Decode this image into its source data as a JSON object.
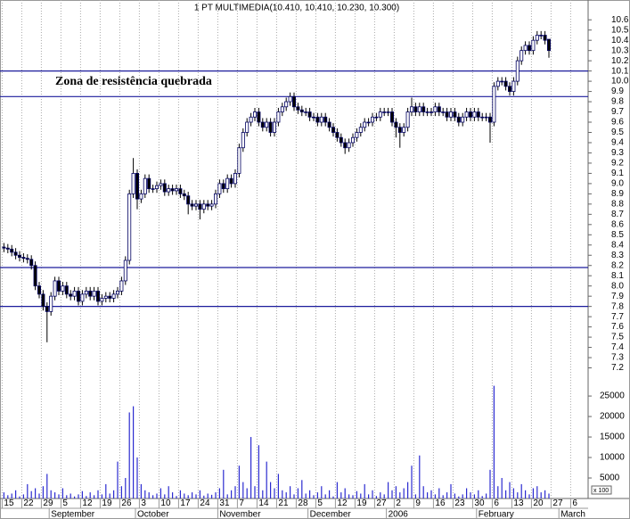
{
  "chart_data": {
    "type": "candlestick",
    "title": "1 PT MULTIMEDIA(10.410, 10.410, 10.230, 10.300)",
    "annotation": "Zona de resistência quebrada",
    "open": [
      8.38,
      8.37,
      8.36,
      8.33,
      8.3,
      8.28,
      8.27,
      8.26,
      8.2,
      8.0,
      7.92,
      7.8,
      7.75,
      7.9,
      8.05,
      7.95,
      8.0,
      7.92,
      7.9,
      7.95,
      7.85,
      7.92,
      7.95,
      7.9,
      7.95,
      7.85,
      7.88,
      7.9,
      7.88,
      7.92,
      7.95,
      8.05,
      8.25,
      8.9,
      9.1,
      8.85,
      8.9,
      9.05,
      8.95,
      8.95,
      8.98,
      9.0,
      8.92,
      8.95,
      8.93,
      8.95,
      8.9,
      8.88,
      8.8,
      8.78,
      8.8,
      8.75,
      8.8,
      8.78,
      8.8,
      8.9,
      9.0,
      8.95,
      9.05,
      9.0,
      9.1,
      9.35,
      9.5,
      9.6,
      9.65,
      9.7,
      9.6,
      9.55,
      9.6,
      9.5,
      9.6,
      9.7,
      9.75,
      9.8,
      9.85,
      9.75,
      9.72,
      9.7,
      9.7,
      9.65,
      9.65,
      9.6,
      9.65,
      9.6,
      9.55,
      9.5,
      9.45,
      9.4,
      9.35,
      9.4,
      9.45,
      9.5,
      9.55,
      9.6,
      9.6,
      9.65,
      9.65,
      9.7,
      9.7,
      9.7,
      9.6,
      9.55,
      9.5,
      9.55,
      9.7,
      9.75,
      9.7,
      9.75,
      9.7,
      9.7,
      9.7,
      9.75,
      9.7,
      9.7,
      9.65,
      9.7,
      9.65,
      9.6,
      9.65,
      9.7,
      9.65,
      9.7,
      9.65,
      9.65,
      9.65,
      9.6,
      9.95,
      10.0,
      10.0,
      9.95,
      9.9,
      10.0,
      10.2,
      10.3,
      10.35,
      10.3,
      10.4,
      10.45,
      10.45,
      10.41
    ],
    "high": [
      8.42,
      8.41,
      8.4,
      8.37,
      8.34,
      8.32,
      8.31,
      8.3,
      8.24,
      8.04,
      7.96,
      7.84,
      7.94,
      8.09,
      8.09,
      8.04,
      8.04,
      7.96,
      7.99,
      7.99,
      7.96,
      7.99,
      7.99,
      7.99,
      7.99,
      7.92,
      7.94,
      7.94,
      7.96,
      7.99,
      8.09,
      8.29,
      8.94,
      9.25,
      9.14,
      8.94,
      9.09,
      9.09,
      8.99,
      9.02,
      9.04,
      9.04,
      8.99,
      8.99,
      8.99,
      8.99,
      8.94,
      8.92,
      8.84,
      8.84,
      8.84,
      8.84,
      8.84,
      8.84,
      8.94,
      9.04,
      9.04,
      9.09,
      9.09,
      9.14,
      9.39,
      9.54,
      9.64,
      9.69,
      9.74,
      9.74,
      9.64,
      9.64,
      9.64,
      9.64,
      9.74,
      9.79,
      9.84,
      9.89,
      9.89,
      9.79,
      9.76,
      9.74,
      9.74,
      9.69,
      9.69,
      9.69,
      9.69,
      9.64,
      9.59,
      9.54,
      9.49,
      9.44,
      9.44,
      9.49,
      9.54,
      9.59,
      9.64,
      9.64,
      9.69,
      9.69,
      9.74,
      9.74,
      9.74,
      9.74,
      9.64,
      9.59,
      9.59,
      9.74,
      9.84,
      9.79,
      9.79,
      9.79,
      9.74,
      9.74,
      9.79,
      9.79,
      9.74,
      9.74,
      9.74,
      9.74,
      9.69,
      9.69,
      9.74,
      9.74,
      9.74,
      9.74,
      9.69,
      9.69,
      9.69,
      9.99,
      10.04,
      10.04,
      10.04,
      9.99,
      10.04,
      10.24,
      10.34,
      10.39,
      10.39,
      10.44,
      10.49,
      10.49,
      10.49,
      10.41
    ],
    "low": [
      8.33,
      8.32,
      8.29,
      8.26,
      8.24,
      8.23,
      8.22,
      8.16,
      7.96,
      7.88,
      7.76,
      7.45,
      7.71,
      7.86,
      7.91,
      7.91,
      7.88,
      7.86,
      7.86,
      7.81,
      7.81,
      7.88,
      7.86,
      7.86,
      7.81,
      7.81,
      7.84,
      7.84,
      7.84,
      7.88,
      7.91,
      8.01,
      8.21,
      8.86,
      8.75,
      8.81,
      8.86,
      8.91,
      8.91,
      8.91,
      8.94,
      8.88,
      8.88,
      8.89,
      8.89,
      8.86,
      8.84,
      8.7,
      8.74,
      8.74,
      8.65,
      8.71,
      8.74,
      8.74,
      8.76,
      8.86,
      8.91,
      8.91,
      8.96,
      8.96,
      9.06,
      9.31,
      9.46,
      9.56,
      9.61,
      9.56,
      9.51,
      9.51,
      9.46,
      9.46,
      9.56,
      9.66,
      9.71,
      9.76,
      9.71,
      9.68,
      9.66,
      9.66,
      9.61,
      9.61,
      9.56,
      9.56,
      9.56,
      9.51,
      9.46,
      9.41,
      9.36,
      9.29,
      9.31,
      9.36,
      9.41,
      9.46,
      9.51,
      9.56,
      9.56,
      9.61,
      9.61,
      9.66,
      9.66,
      9.56,
      9.45,
      9.35,
      9.46,
      9.51,
      9.66,
      9.66,
      9.66,
      9.66,
      9.66,
      9.66,
      9.66,
      9.66,
      9.66,
      9.61,
      9.61,
      9.61,
      9.56,
      9.56,
      9.61,
      9.61,
      9.61,
      9.61,
      9.61,
      9.61,
      9.4,
      9.56,
      9.91,
      9.96,
      9.91,
      9.86,
      9.86,
      9.96,
      10.16,
      10.26,
      10.26,
      10.26,
      10.36,
      10.41,
      10.36,
      10.23
    ],
    "close": [
      8.37,
      8.36,
      8.33,
      8.3,
      8.28,
      8.27,
      8.26,
      8.2,
      8.0,
      7.92,
      7.8,
      7.75,
      7.9,
      8.05,
      7.95,
      8.0,
      7.92,
      7.9,
      7.95,
      7.85,
      7.92,
      7.95,
      7.9,
      7.95,
      7.85,
      7.88,
      7.9,
      7.88,
      7.92,
      7.95,
      8.05,
      8.25,
      8.9,
      9.1,
      8.85,
      8.9,
      9.05,
      8.95,
      8.95,
      8.98,
      9.0,
      8.92,
      8.95,
      8.93,
      8.95,
      8.9,
      8.88,
      8.8,
      8.78,
      8.8,
      8.75,
      8.8,
      8.78,
      8.8,
      8.9,
      9.0,
      8.95,
      9.05,
      9.0,
      9.1,
      9.35,
      9.5,
      9.6,
      9.65,
      9.7,
      9.6,
      9.55,
      9.6,
      9.5,
      9.6,
      9.7,
      9.75,
      9.8,
      9.85,
      9.75,
      9.72,
      9.7,
      9.7,
      9.65,
      9.65,
      9.6,
      9.65,
      9.6,
      9.55,
      9.5,
      9.45,
      9.4,
      9.35,
      9.4,
      9.45,
      9.5,
      9.55,
      9.6,
      9.6,
      9.65,
      9.65,
      9.7,
      9.7,
      9.7,
      9.6,
      9.55,
      9.5,
      9.55,
      9.7,
      9.75,
      9.7,
      9.75,
      9.7,
      9.7,
      9.7,
      9.75,
      9.7,
      9.7,
      9.65,
      9.7,
      9.65,
      9.6,
      9.65,
      9.7,
      9.65,
      9.7,
      9.65,
      9.65,
      9.65,
      9.6,
      9.95,
      10.0,
      10.0,
      9.95,
      9.9,
      10.0,
      10.2,
      10.3,
      10.35,
      10.3,
      10.4,
      10.45,
      10.45,
      10.4,
      10.3
    ],
    "up_color": "#ffffff",
    "down_color": "#000000",
    "edge_color": "#000060",
    "xlim": [
      -1,
      149
    ],
    "xticks": [
      {
        "value": 0,
        "label": "15"
      },
      {
        "value": 5,
        "label": "22"
      },
      {
        "value": 10,
        "label": "29"
      },
      {
        "value": 15,
        "label": "5"
      },
      {
        "value": 20,
        "label": "12"
      },
      {
        "value": 25,
        "label": "19"
      },
      {
        "value": 30,
        "label": "26"
      },
      {
        "value": 35,
        "label": "3"
      },
      {
        "value": 40,
        "label": "10"
      },
      {
        "value": 45,
        "label": "17"
      },
      {
        "value": 50,
        "label": "24"
      },
      {
        "value": 55,
        "label": "31"
      },
      {
        "value": 60,
        "label": "7"
      },
      {
        "value": 65,
        "label": "14"
      },
      {
        "value": 70,
        "label": "21"
      },
      {
        "value": 75,
        "label": "28"
      },
      {
        "value": 80,
        "label": "5"
      },
      {
        "value": 85,
        "label": "12"
      },
      {
        "value": 90,
        "label": "19"
      },
      {
        "value": 95,
        "label": "27"
      },
      {
        "value": 100,
        "label": "2"
      },
      {
        "value": 105,
        "label": "9"
      },
      {
        "value": 110,
        "label": "16"
      },
      {
        "value": 115,
        "label": "23"
      },
      {
        "value": 120,
        "label": "30"
      },
      {
        "value": 125,
        "label": "6"
      },
      {
        "value": 130,
        "label": "13"
      },
      {
        "value": 135,
        "label": "20"
      },
      {
        "value": 140,
        "label": "27"
      },
      {
        "value": 145,
        "label": "6"
      }
    ],
    "month_ticks": [
      {
        "value": 12,
        "label": "September"
      },
      {
        "value": 34,
        "label": "October"
      },
      {
        "value": 55,
        "label": "November"
      },
      {
        "value": 78,
        "label": "December"
      },
      {
        "value": 98,
        "label": "2006"
      },
      {
        "value": 121,
        "label": "February"
      },
      {
        "value": 142,
        "label": "March"
      }
    ],
    "ylim": [
      7.1,
      10.75
    ],
    "yticks": [
      7.2,
      7.3,
      7.4,
      7.5,
      7.6,
      7.7,
      7.8,
      7.9,
      {
        "value": 8,
        "label": "8.0"
      },
      8.1,
      8.2,
      8.3,
      8.4,
      8.5,
      8.6,
      8.7,
      8.8,
      8.9,
      {
        "value": 9,
        "label": "9.0"
      },
      9.1,
      9.2,
      9.3,
      9.4,
      9.5,
      9.6,
      9.7,
      9.8,
      9.9,
      {
        "value": 10,
        "label": "10.0"
      },
      10.1,
      10.2,
      10.3,
      10.4,
      10.5,
      10.6
    ],
    "levels": [
      10.1,
      9.85,
      8.18,
      7.8
    ],
    "level_color": "#1c1c9c",
    "grid": true,
    "volume": {
      "values": [
        1500,
        800,
        1200,
        2000,
        500,
        1000,
        3500,
        1800,
        2500,
        1200,
        3000,
        6000,
        2000,
        1500,
        1000,
        2500,
        800,
        1200,
        500,
        1000,
        1800,
        600,
        1500,
        800,
        2000,
        1000,
        3500,
        1200,
        2000,
        9000,
        3000,
        5000,
        21000,
        22500,
        10000,
        3500,
        2000,
        1500,
        800,
        1200,
        2500,
        1000,
        3000,
        1500,
        600,
        2000,
        1200,
        800,
        1500,
        1000,
        2000,
        700,
        1200,
        900,
        1500,
        2500,
        7000,
        1000,
        2000,
        3000,
        8000,
        4000,
        2500,
        15000,
        3000,
        13000,
        2000,
        9000,
        4000,
        2500,
        6000,
        2000,
        1500,
        3000,
        1000,
        2500,
        4500,
        1200,
        2000,
        800,
        1500,
        3000,
        1000,
        2000,
        500,
        4000,
        1500,
        2500,
        1000,
        800,
        1800,
        1200,
        3500,
        1000,
        2000,
        600,
        1500,
        1000,
        4000,
        2000,
        3000,
        1500,
        2500,
        4000,
        8000,
        1000,
        10500,
        3000,
        1500,
        2000,
        1000,
        2500,
        800,
        1500,
        3500,
        1200,
        500,
        1000,
        2500,
        1500,
        1000,
        2000,
        600,
        1200,
        7000,
        27500,
        3000,
        5000,
        2000,
        4000,
        2500,
        1500,
        3500,
        2000,
        1000,
        2500,
        3000,
        1500,
        2000,
        1200
      ],
      "color": "#2b2bd0",
      "ylim": [
        0,
        28500
      ],
      "yticks": [
        5000,
        10000,
        15000,
        20000,
        25000
      ],
      "unit": "x 100"
    }
  }
}
